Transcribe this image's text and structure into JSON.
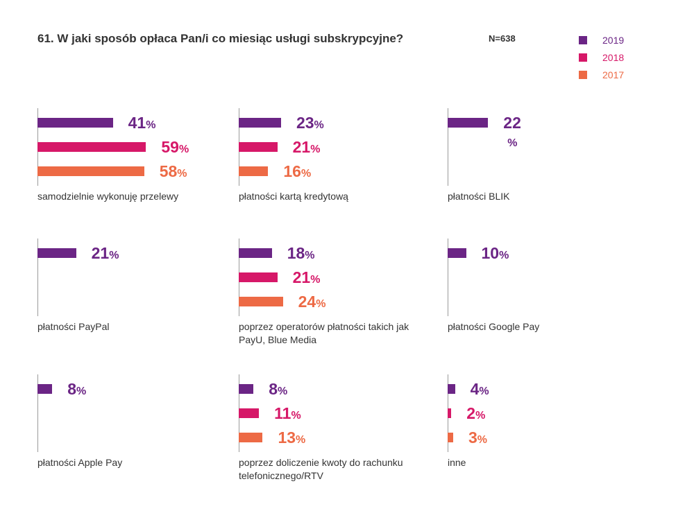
{
  "header": {
    "title": "61. W jaki sposób opłaca Pan/i co miesiąc usługi subskrypcyjne?",
    "n_label": "N=638"
  },
  "legend": [
    {
      "label": "2019",
      "color": "#6b2585"
    },
    {
      "label": "2018",
      "color": "#d61868"
    },
    {
      "label": "2017",
      "color": "#ed6a45"
    }
  ],
  "percent_sign": "%",
  "chart_data": {
    "type": "bar",
    "orientation": "horizontal",
    "title": "61. W jaki sposób opłaca Pan/i co miesiąc usługi subskrypcyjne?",
    "sample_size": "N=638",
    "unit": "%",
    "series_names": [
      "2019",
      "2018",
      "2017"
    ],
    "panels": [
      {
        "category": "samodzielnie wykonuję przelewy",
        "values": {
          "2019": 41,
          "2018": 59,
          "2017": 58
        }
      },
      {
        "category": "płatności kartą kredytową",
        "values": {
          "2019": 23,
          "2018": 21,
          "2017": 16
        }
      },
      {
        "category": "płatności BLIK",
        "values": {
          "2019": 22
        }
      },
      {
        "category": "płatności PayPal",
        "values": {
          "2019": 21
        }
      },
      {
        "category": "poprzez operatorów płatności takich jak PayU, Blue Media",
        "values": {
          "2019": 18,
          "2018": 21,
          "2017": 24
        }
      },
      {
        "category": "płatności Google Pay",
        "values": {
          "2019": 10
        }
      },
      {
        "category": "płatności  Apple Pay",
        "values": {
          "2019": 8
        }
      },
      {
        "category": "poprzez doliczenie kwoty do rachunku telefonicznego/RTV",
        "values": {
          "2019": 8,
          "2018": 11,
          "2017": 13
        }
      },
      {
        "category": "inne",
        "values": {
          "2019": 4,
          "2018": 2,
          "2017": 3
        }
      }
    ]
  }
}
